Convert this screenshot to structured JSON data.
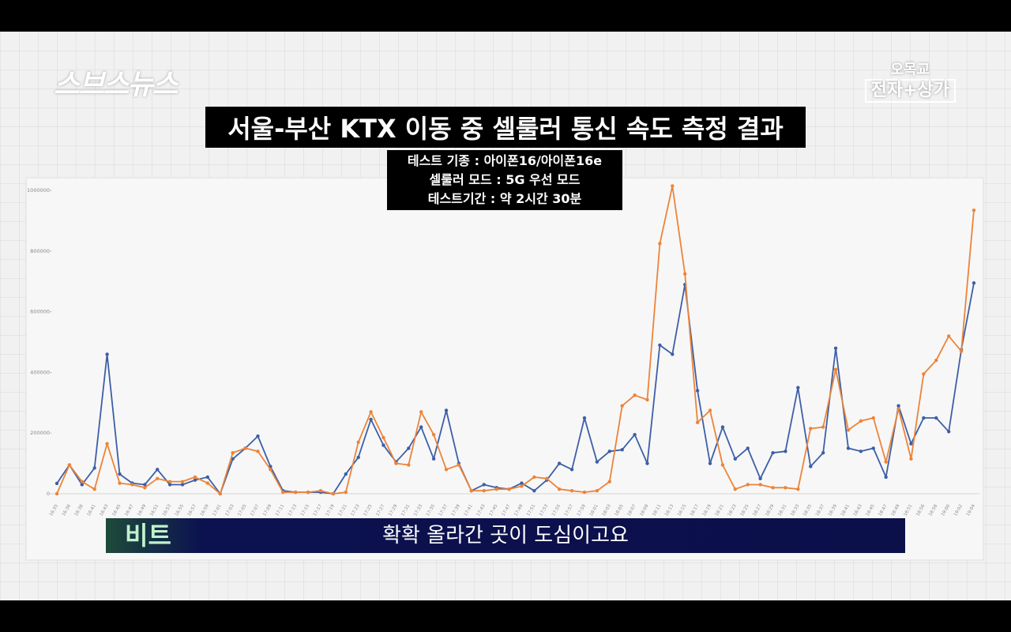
{
  "overlay": {
    "logo": "스브스뉴스",
    "corner_top": "오목교",
    "corner_bottom": "전자+상가",
    "speaker": "비트",
    "subtitle": "확확 올라간 곳이 도심이고요"
  },
  "chart_data": {
    "type": "line",
    "title": "서울-부산 KTX 이동 중 셀룰러 통신 속도 측정 결과",
    "subtitle_lines": [
      "테스트 기종 : 아이폰16/아이폰16e",
      "셀룰러 모드 : 5G 우선 모드",
      "테스트기간 : 약 2시간 30분"
    ],
    "categories": [
      "16:35",
      "16:36",
      "16:38",
      "16:41",
      "16:43",
      "16:45",
      "16:47",
      "16:49",
      "16:51",
      "16:53",
      "16:55",
      "16:57",
      "16:59",
      "17:01",
      "17:03",
      "17:05",
      "17:07",
      "17:09",
      "17:11",
      "17:13",
      "17:15",
      "17:17",
      "17:19",
      "17:21",
      "17:23",
      "17:25",
      "17:27",
      "17:29",
      "17:31",
      "17:33",
      "17:35",
      "17:37",
      "17:39",
      "17:41",
      "17:43",
      "17:45",
      "17:47",
      "17:49",
      "17:51",
      "17:53",
      "17:55",
      "17:57",
      "17:59",
      "18:01",
      "18:03",
      "18:05",
      "18:07",
      "18:09",
      "18:11",
      "18:13",
      "18:15",
      "18:17",
      "18:19",
      "18:21",
      "18:23",
      "18:25",
      "18:27",
      "18:29",
      "18:31",
      "18:33",
      "18:35",
      "18:37",
      "18:39",
      "18:41",
      "18:43",
      "18:45",
      "18:47",
      "18:49",
      "18:51",
      "18:56",
      "18:58",
      "19:00",
      "19:02",
      "19:04"
    ],
    "series": [
      {
        "color": "#3c5fa6",
        "values": [
          34000,
          95000,
          30000,
          85000,
          460000,
          65000,
          35000,
          30000,
          80000,
          30000,
          30000,
          45000,
          55000,
          0,
          115000,
          150000,
          190000,
          90000,
          10000,
          5000,
          5000,
          5000,
          0,
          65000,
          120000,
          245000,
          160000,
          105000,
          150000,
          220000,
          115000,
          275000,
          100000,
          10000,
          30000,
          20000,
          15000,
          35000,
          10000,
          45000,
          100000,
          80000,
          250000,
          105000,
          140000,
          145000,
          195000,
          100000,
          490000,
          460000,
          690000,
          340000,
          100000,
          220000,
          115000,
          150000,
          50000,
          135000,
          140000,
          350000,
          90000,
          135000,
          480000,
          150000,
          140000,
          150000,
          55000,
          290000,
          165000,
          250000,
          250000,
          205000,
          475000,
          695000
        ]
      },
      {
        "color": "#ec8439",
        "values": [
          0,
          95000,
          40000,
          15000,
          165000,
          35000,
          30000,
          20000,
          50000,
          40000,
          40000,
          55000,
          35000,
          0,
          135000,
          150000,
          140000,
          80000,
          5000,
          5000,
          5000,
          10000,
          0,
          5000,
          170000,
          270000,
          185000,
          100000,
          95000,
          270000,
          195000,
          80000,
          95000,
          10000,
          10000,
          15000,
          15000,
          25000,
          55000,
          50000,
          15000,
          10000,
          5000,
          10000,
          40000,
          290000,
          325000,
          310000,
          825000,
          1015000,
          725000,
          235000,
          275000,
          95000,
          15000,
          30000,
          30000,
          20000,
          20000,
          15000,
          215000,
          220000,
          410000,
          210000,
          240000,
          250000,
          105000,
          280000,
          115000,
          395000,
          440000,
          520000,
          470000,
          935000
        ]
      }
    ],
    "ylim": [
      0,
      1050000
    ],
    "yticks": [
      0,
      200000,
      400000,
      600000,
      800000,
      1000000
    ]
  }
}
